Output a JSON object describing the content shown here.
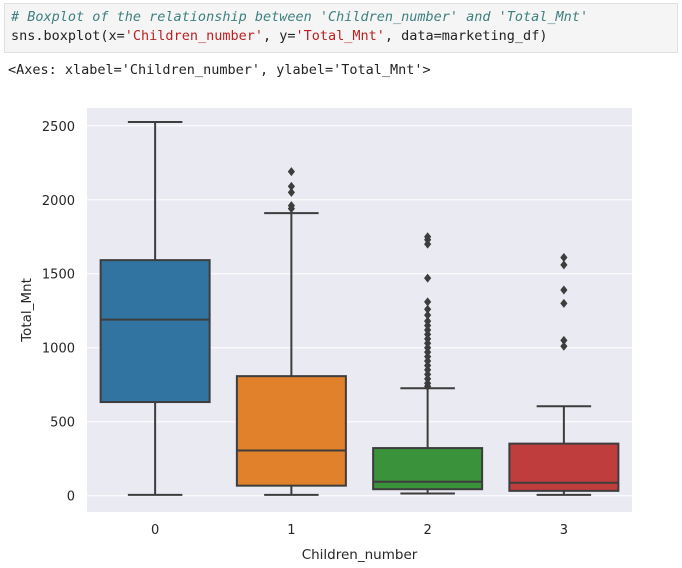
{
  "code_cell": {
    "comment": "# Boxplot of the relationship between 'Children_number' and 'Total_Mnt'",
    "code_prefix": "sns.boxplot(x=",
    "x_arg": "'Children_number'",
    "mid1": ", y=",
    "y_arg": "'Total_Mnt'",
    "mid2": ", data=marketing_df)"
  },
  "output": {
    "text": "<Axes: xlabel='Children_number', ylabel='Total_Mnt'>"
  },
  "chart_data": {
    "type": "boxplot",
    "title": "",
    "xlabel": "Children_number",
    "ylabel": "Total_Mnt",
    "categories": [
      "0",
      "1",
      "2",
      "3"
    ],
    "ylim": [
      -110,
      2620
    ],
    "yticks": [
      0,
      500,
      1000,
      1500,
      2000,
      2500
    ],
    "grid": true,
    "background": "#eaeaf2",
    "boxes": [
      {
        "category": "0",
        "color": "#3274a1",
        "whisker_low": 6,
        "q1": 633,
        "median": 1190,
        "q3": 1592,
        "whisker_high": 2525,
        "outliers": []
      },
      {
        "category": "1",
        "color": "#e1812c",
        "whisker_low": 6,
        "q1": 68,
        "median": 306,
        "q3": 808,
        "whisker_high": 1910,
        "outliers": [
          1940,
          1960,
          2050,
          2090,
          2190
        ]
      },
      {
        "category": "2",
        "color": "#3a923a",
        "whisker_low": 15,
        "q1": 44,
        "median": 94,
        "q3": 322,
        "whisker_high": 726,
        "outliers": [
          740,
          760,
          790,
          820,
          850,
          880,
          910,
          940,
          970,
          1000,
          1030,
          1060,
          1090,
          1120,
          1150,
          1180,
          1220,
          1260,
          1310,
          1470,
          1700,
          1730,
          1750
        ]
      },
      {
        "category": "3",
        "color": "#c03d3e",
        "whisker_low": 6,
        "q1": 33,
        "median": 88,
        "q3": 352,
        "whisker_high": 605,
        "outliers": [
          1010,
          1050,
          1300,
          1390,
          1560,
          1610
        ]
      }
    ]
  }
}
